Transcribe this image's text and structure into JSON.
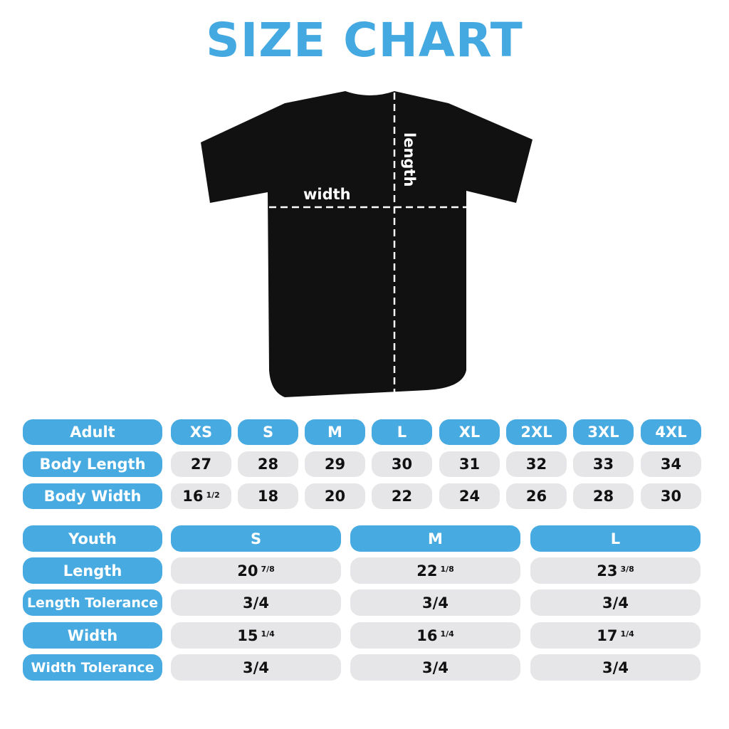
{
  "title": "SIZE CHART",
  "diagram": {
    "width_label": "width",
    "length_label": "length"
  },
  "colors": {
    "accent": "#47abe2",
    "cell": "#e6e6e8",
    "shirt": "#111111"
  },
  "adult": {
    "header": "Adult",
    "sizes": [
      "XS",
      "S",
      "M",
      "L",
      "XL",
      "2XL",
      "3XL",
      "4XL"
    ],
    "rows": [
      {
        "label": "Body Length",
        "values": [
          {
            "v": "27"
          },
          {
            "v": "28"
          },
          {
            "v": "29"
          },
          {
            "v": "30"
          },
          {
            "v": "31"
          },
          {
            "v": "32"
          },
          {
            "v": "33"
          },
          {
            "v": "34"
          }
        ]
      },
      {
        "label": "Body Width",
        "values": [
          {
            "v": "16",
            "f": "1/2"
          },
          {
            "v": "18"
          },
          {
            "v": "20"
          },
          {
            "v": "22"
          },
          {
            "v": "24"
          },
          {
            "v": "26"
          },
          {
            "v": "28"
          },
          {
            "v": "30"
          }
        ]
      }
    ]
  },
  "youth": {
    "header": "Youth",
    "sizes": [
      "S",
      "M",
      "L"
    ],
    "rows": [
      {
        "label": "Length",
        "values": [
          {
            "v": "20",
            "f": "7/8"
          },
          {
            "v": "22",
            "f": "1/8"
          },
          {
            "v": "23",
            "f": "3/8"
          }
        ]
      },
      {
        "label": "Length Tolerance",
        "values": [
          {
            "v": "3/4"
          },
          {
            "v": "3/4"
          },
          {
            "v": "3/4"
          }
        ]
      },
      {
        "label": "Width",
        "values": [
          {
            "v": "15",
            "f": "1/4"
          },
          {
            "v": "16",
            "f": "1/4"
          },
          {
            "v": "17",
            "f": "1/4"
          }
        ]
      },
      {
        "label": "Width Tolerance",
        "values": [
          {
            "v": "3/4"
          },
          {
            "v": "3/4"
          },
          {
            "v": "3/4"
          }
        ]
      }
    ]
  }
}
